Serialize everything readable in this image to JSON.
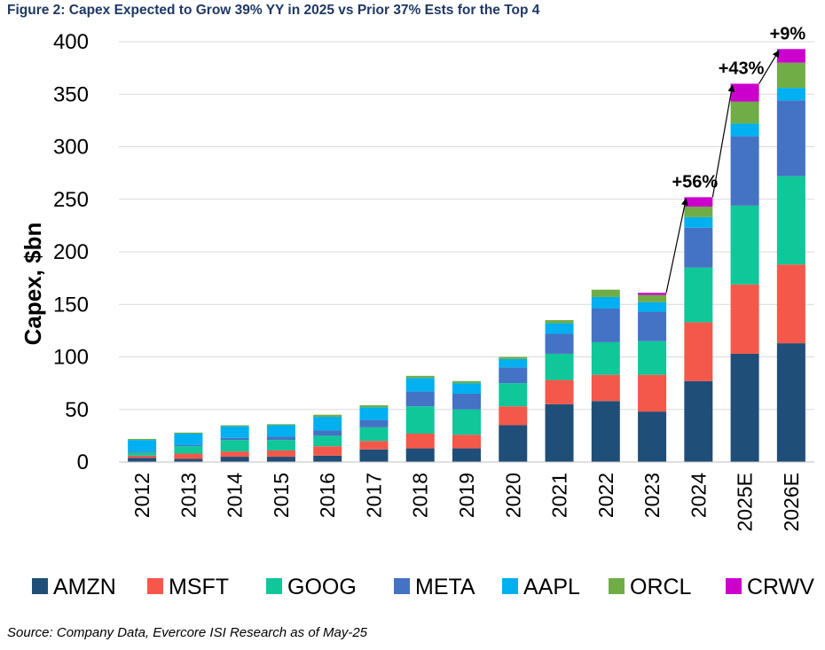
{
  "figure": {
    "title": "Figure 2: Capex Expected to Grow 39% YY in 2025 vs Prior 37% Ests for the Top 4",
    "source": "Source: Company Data, Evercore ISI Research as of May-25"
  },
  "chart_data": {
    "type": "bar",
    "stacked": true,
    "title": "Figure 2: Capex Expected to Grow 39% YY in 2025 vs Prior 37% Ests for the Top 4",
    "xlabel": "",
    "ylabel": "Capex, $bn",
    "ylim": [
      0,
      400
    ],
    "yticks": [
      0,
      50,
      100,
      150,
      200,
      250,
      300,
      350,
      400
    ],
    "grid": "horizontal",
    "legend_position": "bottom",
    "categories": [
      "2012",
      "2013",
      "2014",
      "2015",
      "2016",
      "2017",
      "2018",
      "2019",
      "2020",
      "2021",
      "2022",
      "2023",
      "2024",
      "2025E",
      "2026E"
    ],
    "series": [
      {
        "name": "AMZN",
        "color": "#1f4e79",
        "values": [
          4,
          3,
          5,
          5,
          6,
          12,
          13,
          13,
          35,
          55,
          58,
          48,
          77,
          103,
          113
        ]
      },
      {
        "name": "MSFT",
        "color": "#f4584a",
        "values": [
          2,
          5,
          5,
          6,
          9,
          8,
          14,
          13,
          18,
          23,
          25,
          35,
          56,
          66,
          75
        ]
      },
      {
        "name": "GOOG",
        "color": "#10c79a",
        "values": [
          3,
          7,
          11,
          10,
          10,
          13,
          26,
          24,
          22,
          25,
          31,
          32,
          52,
          75,
          84
        ]
      },
      {
        "name": "META",
        "color": "#4472c4",
        "values": [
          1,
          1,
          2,
          3,
          5,
          7,
          14,
          15,
          15,
          19,
          32,
          28,
          38,
          66,
          72
        ]
      },
      {
        "name": "AAPL",
        "color": "#00b0f0",
        "values": [
          11,
          11,
          11,
          11,
          13,
          12,
          13,
          10,
          8,
          10,
          11,
          9,
          10,
          12,
          12
        ]
      },
      {
        "name": "ORCL",
        "color": "#70ad47",
        "values": [
          1,
          1,
          1,
          1,
          2,
          2,
          2,
          2,
          2,
          3,
          7,
          7,
          10,
          21,
          24
        ]
      },
      {
        "name": "CRWV",
        "color": "#cc00cc",
        "values": [
          0,
          0,
          0,
          0,
          0,
          0,
          0,
          0,
          0,
          0,
          0,
          2,
          9,
          17,
          13
        ]
      }
    ],
    "annotations": [
      {
        "text": "+56%",
        "from": "2023",
        "to": "2024"
      },
      {
        "text": "+43%",
        "from": "2024",
        "to": "2025E"
      },
      {
        "text": "+9%",
        "from": "2025E",
        "to": "2026E"
      }
    ]
  }
}
